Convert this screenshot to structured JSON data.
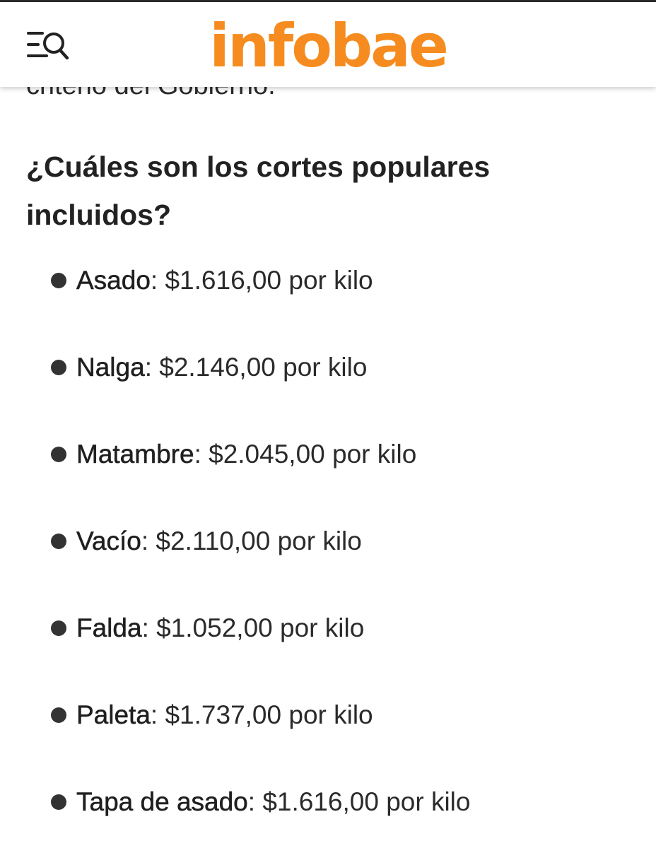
{
  "header": {
    "logo_text": "infobae",
    "menu_icon": "menu-search-icon",
    "logo_color": "#f68c1f"
  },
  "article": {
    "previous_paragraph_tail": "criterio del Gobierno.",
    "section_title": "¿Cuáles son los cortes populares incluidos?",
    "cuts": [
      {
        "name": "Asado",
        "price": ": $1.616,00 por kilo"
      },
      {
        "name": "Nalga",
        "price": ": $2.146,00 por kilo"
      },
      {
        "name": "Matambre",
        "price": ": $2.045,00 por kilo"
      },
      {
        "name": "Vacío",
        "price": ": $2.110,00 por kilo"
      },
      {
        "name": "Falda",
        "price": ": $1.052,00 por kilo"
      },
      {
        "name": "Paleta",
        "price": ": $1.737,00 por kilo"
      },
      {
        "name": "Tapa de asado",
        "price": ": $1.616,00 por kilo"
      }
    ]
  }
}
